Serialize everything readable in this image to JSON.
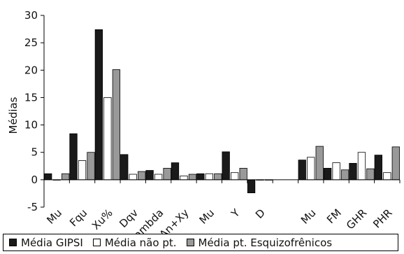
{
  "colors": {
    "gipsi": "#1a1a1a",
    "nao_pt": "#ffffff",
    "esquizo": "#999999"
  },
  "chart_data": {
    "type": "bar",
    "ylabel": "Médias",
    "ylim": [
      -5,
      30
    ],
    "yticks": [
      -5,
      0,
      5,
      10,
      15,
      20,
      25,
      30
    ],
    "categories": [
      "Mu",
      "Fqu",
      "Xu%",
      "Dqv",
      "Lambda",
      "An+Xy",
      "Mu",
      "Y",
      "D",
      "",
      "Mu",
      "FM",
      "GHR",
      "PHR"
    ],
    "series": [
      {
        "name": "Média GIPSI",
        "values": [
          1.1,
          8.4,
          27.4,
          4.6,
          1.7,
          3.1,
          1.1,
          5.1,
          -2.4,
          null,
          3.6,
          2.1,
          3.0,
          4.5
        ]
      },
      {
        "name": "Média não pt.",
        "values": [
          0.0,
          3.5,
          15.0,
          1.0,
          1.0,
          0.7,
          1.1,
          1.3,
          0.0,
          null,
          4.1,
          3.1,
          5.0,
          1.3
        ]
      },
      {
        "name": "Média pt. Esquizofrênicos",
        "values": [
          1.1,
          5.0,
          20.1,
          1.5,
          2.1,
          1.0,
          1.1,
          2.1,
          0.0,
          null,
          6.1,
          1.8,
          2.0,
          6.0
        ]
      }
    ],
    "grid": false,
    "legend_position": "bottom"
  }
}
